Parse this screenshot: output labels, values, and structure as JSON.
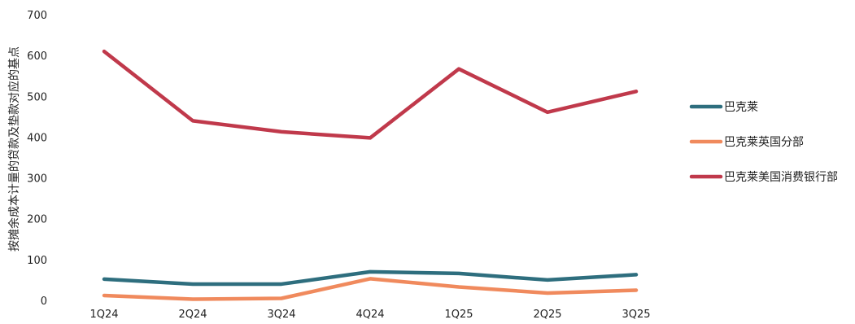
{
  "chart_data": {
    "type": "line",
    "title": "",
    "xlabel": "",
    "ylabel": "按摊余成本计量的贷款及垫款对应的基点",
    "categories": [
      "1Q24",
      "2Q24",
      "3Q24",
      "4Q24",
      "1Q25",
      "2Q25",
      "3Q25"
    ],
    "ylim": [
      0,
      700
    ],
    "yticks": [
      0,
      100,
      200,
      300,
      400,
      500,
      600,
      700
    ],
    "grid": false,
    "legend_position": "right",
    "series": [
      {
        "name": "巴克莱",
        "color": "#2e6e7e",
        "values": [
          52,
          40,
          40,
          70,
          66,
          50,
          63
        ]
      },
      {
        "name": "巴克莱英国分部",
        "color": "#f08a5d",
        "values": [
          12,
          3,
          5,
          53,
          33,
          18,
          25
        ]
      },
      {
        "name": "巴克莱美国消费银行部",
        "color": "#c0394b",
        "values": [
          610,
          440,
          413,
          398,
          567,
          461,
          512
        ]
      }
    ]
  }
}
